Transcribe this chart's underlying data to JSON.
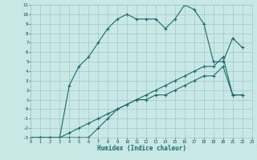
{
  "xlabel": "Humidex (Indice chaleur)",
  "bg_color": "#c8e8e6",
  "grid_color": "#a0c8c6",
  "line_color": "#1a6b6b",
  "xlim": [
    0,
    23
  ],
  "ylim": [
    -3,
    11
  ],
  "xticks": [
    0,
    1,
    2,
    3,
    4,
    5,
    6,
    7,
    8,
    9,
    10,
    11,
    12,
    13,
    14,
    15,
    16,
    17,
    18,
    19,
    20,
    21,
    22,
    23
  ],
  "yticks": [
    -3,
    -2,
    -1,
    0,
    1,
    2,
    3,
    4,
    5,
    6,
    7,
    8,
    9,
    10,
    11
  ],
  "line1_x": [
    0,
    1,
    2,
    3,
    4,
    5,
    6,
    7,
    8,
    9,
    10,
    11,
    12,
    13,
    14,
    15,
    16,
    17,
    18,
    19,
    20,
    21,
    22
  ],
  "line1_y": [
    -3,
    -3,
    -3,
    -3,
    2.5,
    4.5,
    5.5,
    7.0,
    8.5,
    9.5,
    10.0,
    9.5,
    9.5,
    9.5,
    8.5,
    9.5,
    11.0,
    10.5,
    9.0,
    5.0,
    5.0,
    7.5,
    6.5
  ],
  "line2_x": [
    0,
    1,
    2,
    3,
    4,
    5,
    6,
    7,
    8,
    9,
    10,
    11,
    12,
    13,
    14,
    15,
    16,
    17,
    18,
    19,
    20,
    21,
    22
  ],
  "line2_y": [
    -3,
    -3,
    -3,
    -3,
    -3,
    -3,
    -3,
    -2,
    -1,
    0,
    0.5,
    1,
    1,
    1.5,
    1.5,
    2,
    2.5,
    3,
    3.5,
    3.5,
    4.5,
    1.5,
    1.5
  ],
  "line3_x": [
    0,
    1,
    2,
    3,
    4,
    5,
    6,
    7,
    8,
    9,
    10,
    11,
    12,
    13,
    14,
    15,
    16,
    17,
    18,
    19,
    20,
    21,
    22
  ],
  "line3_y": [
    -3,
    -3,
    -3,
    -3,
    -2.5,
    -2,
    -1.5,
    -1,
    -0.5,
    0,
    0.5,
    1,
    1.5,
    2,
    2.5,
    3,
    3.5,
    4,
    4.5,
    4.5,
    5.5,
    1.5,
    1.5
  ]
}
